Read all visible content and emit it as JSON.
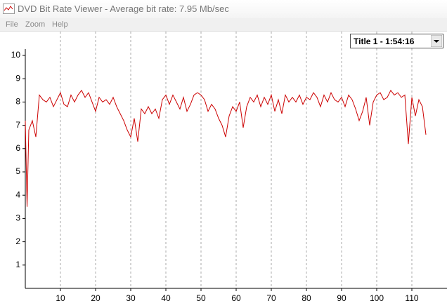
{
  "window": {
    "title": "DVD Bit Rate Viewer - Average bit rate: 7.95 Mb/sec"
  },
  "menu": [
    "File",
    "Zoom",
    "Help"
  ],
  "dropdown": {
    "selected": "Title 1 - 1:54:16"
  },
  "chart_data": {
    "type": "line",
    "x": [
      0,
      0.5,
      1,
      2,
      3,
      4,
      5,
      6,
      7,
      8,
      9,
      10,
      11,
      12,
      13,
      14,
      15,
      16,
      17,
      18,
      19,
      20,
      21,
      22,
      23,
      24,
      25,
      26,
      27,
      28,
      29,
      30,
      31,
      32,
      33,
      34,
      35,
      36,
      37,
      38,
      39,
      40,
      41,
      42,
      43,
      44,
      45,
      46,
      47,
      48,
      49,
      50,
      51,
      52,
      53,
      54,
      55,
      56,
      57,
      58,
      59,
      60,
      61,
      62,
      63,
      64,
      65,
      66,
      67,
      68,
      69,
      70,
      71,
      72,
      73,
      74,
      75,
      76,
      77,
      78,
      79,
      80,
      81,
      82,
      83,
      84,
      85,
      86,
      87,
      88,
      89,
      90,
      91,
      92,
      93,
      94,
      95,
      96,
      97,
      98,
      99,
      100,
      101,
      102,
      103,
      104,
      105,
      106,
      107,
      108,
      109,
      110,
      111,
      112,
      113,
      114
    ],
    "series": [
      {
        "color": "#cc0000",
        "values": [
          7.2,
          3.5,
          6.8,
          7.2,
          6.5,
          8.3,
          8.1,
          8.0,
          8.2,
          7.8,
          8.1,
          8.4,
          7.9,
          7.8,
          8.3,
          8.0,
          8.3,
          8.5,
          8.2,
          8.4,
          8.0,
          7.6,
          8.2,
          8.0,
          8.1,
          7.9,
          8.2,
          7.8,
          7.5,
          7.2,
          6.8,
          6.5,
          7.3,
          6.3,
          7.7,
          7.5,
          7.8,
          7.5,
          7.7,
          7.3,
          8.1,
          8.3,
          7.9,
          8.3,
          8.0,
          7.7,
          8.2,
          7.6,
          7.9,
          8.3,
          8.4,
          8.3,
          8.1,
          7.6,
          7.9,
          7.7,
          7.3,
          7.0,
          6.5,
          7.4,
          7.8,
          7.6,
          8.0,
          6.9,
          7.8,
          8.2,
          8.0,
          8.3,
          7.8,
          8.2,
          7.9,
          8.3,
          7.6,
          8.1,
          7.5,
          8.3,
          8.0,
          8.2,
          8.0,
          8.3,
          7.9,
          8.2,
          8.1,
          8.4,
          8.2,
          7.8,
          8.3,
          8.0,
          8.4,
          8.1,
          8.0,
          8.2,
          7.8,
          8.3,
          8.1,
          7.7,
          7.2,
          7.6,
          8.2,
          7.0,
          8.0,
          8.3,
          8.4,
          8.1,
          8.2,
          8.5,
          8.3,
          8.4,
          8.2,
          8.3,
          6.2,
          8.2,
          7.4,
          8.1,
          7.8,
          6.6
        ]
      }
    ],
    "xlim": [
      0,
      120
    ],
    "ylim": [
      0,
      10
    ],
    "xticks": [
      10,
      20,
      30,
      40,
      50,
      60,
      70,
      80,
      90,
      100,
      110
    ],
    "yticks": [
      1,
      2,
      3,
      4,
      5,
      6,
      7,
      8,
      9,
      10
    ],
    "grid": "x"
  }
}
